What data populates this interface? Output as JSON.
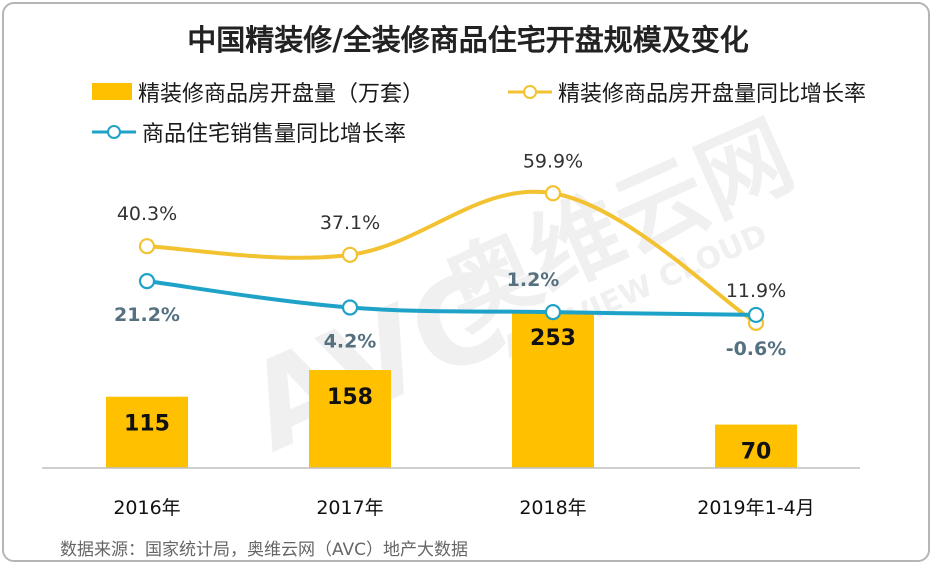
{
  "chart_data": {
    "type": "bar",
    "title": "中国精装修/全装修商品住宅开盘规模及变化",
    "categories": [
      "2016年",
      "2017年",
      "2018年",
      "2019年1-4月"
    ],
    "bar_series": {
      "name": "精装修商品房开盘量（万套）",
      "values": [
        115,
        158,
        253,
        70
      ],
      "color": "#FFC000"
    },
    "line_series": [
      {
        "name": "精装修商品房开盘量同比增长率",
        "values": [
          40.3,
          37.1,
          59.9,
          11.9
        ],
        "labels": [
          "40.3%",
          "37.1%",
          "59.9%",
          "11.9%"
        ],
        "color": "#F2C230",
        "label_color": "#333333"
      },
      {
        "name": "商品住宅销售量同比增长率",
        "values": [
          21.2,
          4.2,
          1.2,
          -0.6
        ],
        "labels": [
          "21.2%",
          "4.2%",
          "1.2%",
          "-0.6%"
        ],
        "color": "#1FA2C8",
        "label_color": "#55707F"
      }
    ],
    "legend_position": "top",
    "grid": false,
    "source": "数据来源：国家统计局，奥维云网（AVC）地产大数据",
    "watermark": "AVC 奥维云网 ALL VIEW CLOUD"
  }
}
